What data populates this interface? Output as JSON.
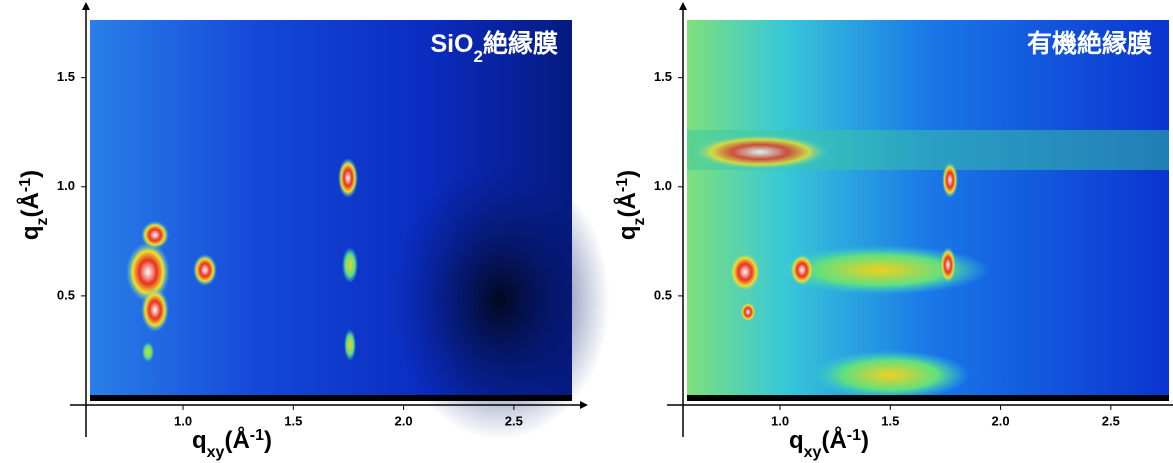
{
  "chart_data": [
    {
      "type": "image",
      "title": [
        "SiO",
        "2",
        "絶縁膜"
      ],
      "x_label": [
        "q",
        "xy",
        "(Å",
        "-1",
        ")"
      ],
      "y_label": [
        "q",
        "z",
        "(Å",
        "-1",
        ")"
      ],
      "xlim": [
        0.56,
        2.8
      ],
      "ylim": [
        0,
        1.81
      ],
      "xticks": [
        {
          "value": 1,
          "label": "1.0"
        },
        1.5,
        {
          "value": 2,
          "label": "2.0"
        },
        2.5
      ],
      "yticks": [
        0.5,
        {
          "value": 1,
          "label": "1.0"
        },
        1.5
      ]
    },
    {
      "type": "image",
      "title": [
        "有機絶縁膜"
      ],
      "x_label": [
        "q",
        "xy",
        "(Å",
        "-1",
        ")"
      ],
      "y_label": [
        "q",
        "z",
        "(Å",
        "-1",
        ")"
      ],
      "xlim": [
        0.56,
        2.8
      ],
      "ylim": [
        0,
        1.81
      ],
      "xticks": [
        {
          "value": 1,
          "label": "1.0"
        },
        1.5,
        {
          "value": 2,
          "label": "2.0"
        },
        2.5
      ],
      "yticks": [
        0.5,
        {
          "value": 1,
          "label": "1.0"
        },
        1.5
      ]
    }
  ]
}
